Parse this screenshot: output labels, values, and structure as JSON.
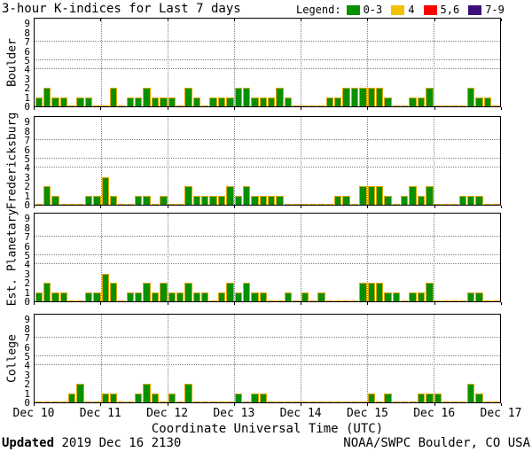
{
  "title": "3-hour K-indices for Last 7 days",
  "legend": {
    "label": "Legend:",
    "items": [
      {
        "label": "0-3",
        "color": "#089000"
      },
      {
        "label": "4",
        "color": "#F2C200"
      },
      {
        "label": "5,6",
        "color": "#FF0000"
      },
      {
        "label": "7-9",
        "color": "#3D0F7D"
      }
    ]
  },
  "footer": {
    "updated_label": "Updated",
    "updated_value": " 2019 Dec 16 2130",
    "credit": "NOAA/SWPC Boulder, CO USA"
  },
  "chart_data": {
    "type": "bar",
    "title": "3-hour K-indices for Last 7 days",
    "xlabel": "Coordinate Universal Time (UTC)",
    "x_tick_labels": [
      "Dec 10",
      "Dec 11",
      "Dec 12",
      "Dec 13",
      "Dec 14",
      "Dec 15",
      "Dec 16",
      "Dec 17"
    ],
    "y_ticks": [
      0,
      1,
      2,
      3,
      4,
      5,
      6,
      7,
      8,
      9
    ],
    "ylim": [
      0,
      9
    ],
    "bars_per_day": 8,
    "hours_per_bar": 3,
    "hgrid_levels": [
      4,
      5,
      7
    ],
    "grid": true,
    "legend_position": "top-right",
    "bar_fill": "#089000",
    "bar_outline": "#E2A600",
    "k_color_bands": {
      "0-3": "#089000",
      "4": "#F2C200",
      "5-6": "#FF0000",
      "7-9": "#3D0F7D"
    },
    "panels": [
      {
        "station": "Boulder",
        "values": [
          1,
          2,
          1,
          1,
          0,
          1,
          1,
          0,
          0,
          2,
          0,
          1,
          1,
          2,
          1,
          1,
          1,
          0,
          2,
          1,
          0,
          1,
          1,
          1,
          2,
          2,
          1,
          1,
          1,
          2,
          1,
          0,
          0,
          0,
          0,
          1,
          1,
          2,
          2,
          2,
          2,
          2,
          1,
          0,
          0,
          1,
          1,
          2,
          0,
          0,
          0,
          0,
          2,
          1,
          1,
          0
        ]
      },
      {
        "station": "Fredericksburg",
        "values": [
          0,
          2,
          1,
          0,
          0,
          0,
          1,
          1,
          3,
          1,
          0,
          0,
          1,
          1,
          0,
          1,
          0,
          0,
          2,
          1,
          1,
          1,
          1,
          2,
          1,
          2,
          1,
          1,
          1,
          1,
          0,
          0,
          0,
          0,
          0,
          0,
          1,
          1,
          0,
          2,
          2,
          2,
          1,
          0,
          1,
          2,
          1,
          2,
          0,
          0,
          0,
          1,
          1,
          1,
          0,
          0
        ]
      },
      {
        "station": "Est. Planetary",
        "values": [
          1,
          2,
          1,
          1,
          0,
          0,
          1,
          1,
          3,
          2,
          0,
          1,
          1,
          2,
          1,
          2,
          1,
          1,
          2,
          1,
          1,
          0,
          1,
          2,
          1,
          2,
          1,
          1,
          0,
          0,
          1,
          0,
          1,
          0,
          1,
          0,
          0,
          0,
          0,
          2,
          2,
          2,
          1,
          1,
          0,
          1,
          1,
          2,
          0,
          0,
          0,
          0,
          1,
          1,
          0,
          0
        ]
      },
      {
        "station": "College",
        "values": [
          0,
          0,
          0,
          0,
          1,
          2,
          0,
          0,
          1,
          1,
          0,
          0,
          1,
          2,
          1,
          0,
          1,
          0,
          2,
          0,
          0,
          0,
          0,
          0,
          1,
          0,
          1,
          1,
          0,
          0,
          0,
          0,
          0,
          0,
          0,
          0,
          0,
          0,
          0,
          0,
          1,
          0,
          1,
          0,
          0,
          0,
          1,
          1,
          1,
          0,
          0,
          0,
          2,
          1,
          0,
          0
        ]
      }
    ]
  }
}
